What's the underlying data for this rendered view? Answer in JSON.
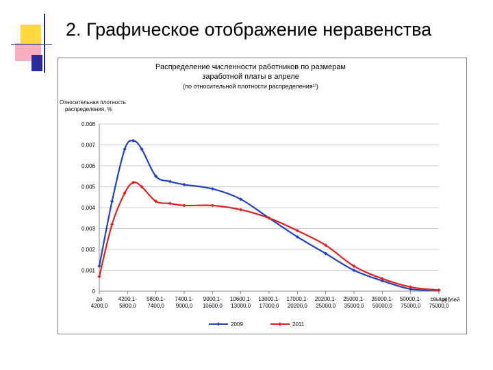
{
  "slide": {
    "title": "2. Графическое отображение неравенства"
  },
  "chart_data": {
    "type": "line",
    "title_line1": "Распределение численности работников по размерам",
    "title_line2": "заработной платы в апреле",
    "subtitle": "(по относительной плотности распределения¹⁾)",
    "ylabel_line1": "Относительная плотность",
    "ylabel_line2": "распределения, %",
    "xunit": "рублей",
    "ylim": [
      0,
      0.008
    ],
    "yticks": [
      "0",
      "0.001",
      "0.002",
      "0.003",
      "0.004",
      "0.005",
      "0.006",
      "0.007",
      "0.008"
    ],
    "grid": true,
    "legend_position": "bottom",
    "x_ticks": [
      {
        "line1": "до",
        "line2": "4200,0"
      },
      {
        "line1": "4200,1-",
        "line2": "5800,0"
      },
      {
        "line1": "5800,1-",
        "line2": "7400,0"
      },
      {
        "line1": "7400,1-",
        "line2": "9000,0"
      },
      {
        "line1": "9000,1-",
        "line2": "10600,0"
      },
      {
        "line1": "10600,1-",
        "line2": "13000,0"
      },
      {
        "line1": "13000,1-",
        "line2": "17000,0"
      },
      {
        "line1": "17000,1-",
        "line2": "20200,0"
      },
      {
        "line1": "20200,1-",
        "line2": "25000,0"
      },
      {
        "line1": "25000,1-",
        "line2": "35000,0"
      },
      {
        "line1": "35000,1-",
        "line2": "50000,0"
      },
      {
        "line1": "50000,1-",
        "line2": "75000,0"
      },
      {
        "line1": "свыше",
        "line2": "75000,0"
      }
    ],
    "series": [
      {
        "name": "2009",
        "color": "#1f3fc4",
        "points": [
          {
            "x": 0.0,
            "y": 0.0012
          },
          {
            "x": 0.45,
            "y": 0.0043
          },
          {
            "x": 0.9,
            "y": 0.0068
          },
          {
            "x": 1.2,
            "y": 0.0072
          },
          {
            "x": 1.5,
            "y": 0.0068
          },
          {
            "x": 2.0,
            "y": 0.0055
          },
          {
            "x": 2.5,
            "y": 0.00525
          },
          {
            "x": 3.0,
            "y": 0.0051
          },
          {
            "x": 4.0,
            "y": 0.0049
          },
          {
            "x": 5.0,
            "y": 0.0044
          },
          {
            "x": 6.0,
            "y": 0.0035
          },
          {
            "x": 7.0,
            "y": 0.0026
          },
          {
            "x": 8.0,
            "y": 0.0018
          },
          {
            "x": 9.0,
            "y": 0.001
          },
          {
            "x": 10.0,
            "y": 0.0005
          },
          {
            "x": 11.0,
            "y": 0.0001
          },
          {
            "x": 12.0,
            "y": 5e-05
          }
        ]
      },
      {
        "name": "2011",
        "color": "#e02020",
        "points": [
          {
            "x": 0.0,
            "y": 0.0007
          },
          {
            "x": 0.45,
            "y": 0.0032
          },
          {
            "x": 0.9,
            "y": 0.0047
          },
          {
            "x": 1.2,
            "y": 0.0052
          },
          {
            "x": 1.5,
            "y": 0.005
          },
          {
            "x": 2.0,
            "y": 0.0043
          },
          {
            "x": 2.5,
            "y": 0.0042
          },
          {
            "x": 3.0,
            "y": 0.0041
          },
          {
            "x": 4.0,
            "y": 0.0041
          },
          {
            "x": 5.0,
            "y": 0.0039
          },
          {
            "x": 6.0,
            "y": 0.0035
          },
          {
            "x": 7.0,
            "y": 0.0029
          },
          {
            "x": 8.0,
            "y": 0.0022
          },
          {
            "x": 9.0,
            "y": 0.0012
          },
          {
            "x": 10.0,
            "y": 0.0006
          },
          {
            "x": 11.0,
            "y": 0.0002
          },
          {
            "x": 12.0,
            "y": 5e-05
          }
        ]
      }
    ]
  }
}
